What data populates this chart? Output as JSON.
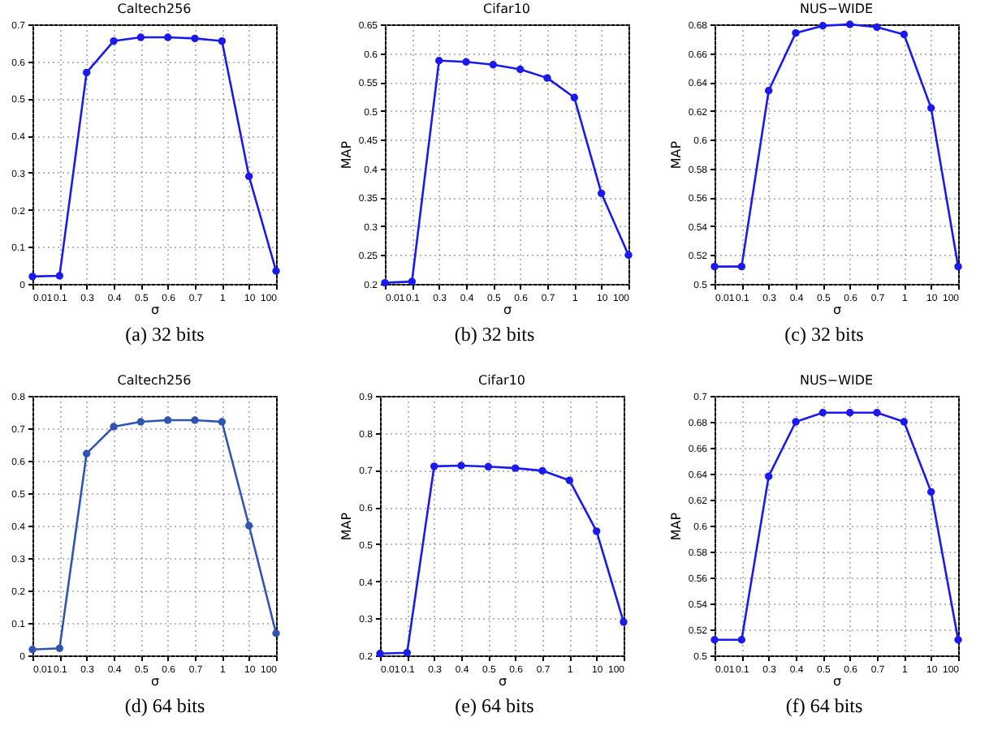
{
  "chart_data": [
    {
      "type": "line",
      "title": "Caltech256",
      "xlabel": "σ",
      "categories": [
        "0.01",
        "0.1",
        "0.3",
        "0.4",
        "0.5",
        "0.6",
        "0.7",
        "1",
        "10",
        "100"
      ],
      "series": [
        {
          "color": "#1a1aee",
          "values": [
            0.02,
            0.022,
            0.57,
            0.655,
            0.665,
            0.665,
            0.662,
            0.655,
            0.29,
            0.035
          ]
        }
      ],
      "ylim": [
        0,
        0.7
      ],
      "yticks": [
        0,
        0.1,
        0.2,
        0.3,
        0.4,
        0.5,
        0.6,
        0.7
      ],
      "grid": true,
      "marker": "circle",
      "annotations": [
        "(a) 32 bits"
      ]
    },
    {
      "type": "line",
      "title": "Cifar10",
      "xlabel": "σ",
      "ylabel": "MAP",
      "categories": [
        "0.01",
        "0.1",
        "0.3",
        "0.4",
        "0.5",
        "0.6",
        "0.7",
        "1",
        "10",
        "100"
      ],
      "series": [
        {
          "color": "#1a1aee",
          "values": [
            0.202,
            0.204,
            0.587,
            0.585,
            0.58,
            0.572,
            0.557,
            0.523,
            0.357,
            0.25
          ]
        }
      ],
      "ylim": [
        0.2,
        0.65
      ],
      "yticks": [
        0.2,
        0.25,
        0.3,
        0.35,
        0.4,
        0.45,
        0.5,
        0.55,
        0.6,
        0.65
      ],
      "grid": true,
      "marker": "circle",
      "annotations": [
        "(b) 32 bits"
      ]
    },
    {
      "type": "line",
      "title": "NUS−WIDE",
      "xlabel": "σ",
      "ylabel": "MAP",
      "categories": [
        "0.01",
        "0.1",
        "0.3",
        "0.4",
        "0.5",
        "0.6",
        "0.7",
        "1",
        "10",
        "100"
      ],
      "series": [
        {
          "color": "#1a1aee",
          "values": [
            0.512,
            0.512,
            0.634,
            0.674,
            0.679,
            0.68,
            0.678,
            0.673,
            0.622,
            0.512
          ]
        }
      ],
      "ylim": [
        0.5,
        0.68
      ],
      "yticks": [
        0.5,
        0.52,
        0.54,
        0.56,
        0.58,
        0.6,
        0.62,
        0.64,
        0.66,
        0.68
      ],
      "grid": true,
      "marker": "circle",
      "annotations": [
        "(c) 32 bits"
      ]
    },
    {
      "type": "line",
      "title": "Caltech256",
      "xlabel": "σ",
      "categories": [
        "0.01",
        "0.1",
        "0.3",
        "0.4",
        "0.5",
        "0.6",
        "0.7",
        "1",
        "10",
        "100"
      ],
      "series": [
        {
          "color": "#2f55b0",
          "values": [
            0.018,
            0.022,
            0.622,
            0.705,
            0.72,
            0.725,
            0.725,
            0.72,
            0.4,
            0.068
          ]
        }
      ],
      "ylim": [
        0,
        0.8
      ],
      "yticks": [
        0,
        0.1,
        0.2,
        0.3,
        0.4,
        0.5,
        0.6,
        0.7,
        0.8
      ],
      "grid": true,
      "marker": "circle",
      "annotations": [
        "(d) 64 bits"
      ]
    },
    {
      "type": "line",
      "title": "Cifar10",
      "xlabel": "σ",
      "ylabel": "MAP",
      "categories": [
        "0.01",
        "0.1",
        "0.3",
        "0.4",
        "0.5",
        "0.6",
        "0.7",
        "1",
        "10",
        "100"
      ],
      "series": [
        {
          "color": "#1a1aee",
          "values": [
            0.205,
            0.207,
            0.71,
            0.712,
            0.709,
            0.705,
            0.698,
            0.672,
            0.535,
            0.29
          ]
        }
      ],
      "ylim": [
        0.2,
        0.9
      ],
      "yticks": [
        0.2,
        0.3,
        0.4,
        0.5,
        0.6,
        0.7,
        0.8,
        0.9
      ],
      "grid": true,
      "marker": "circle",
      "annotations": [
        "(e) 64 bits"
      ]
    },
    {
      "type": "line",
      "title": "NUS−WIDE",
      "xlabel": "σ",
      "ylabel": "MAP",
      "categories": [
        "0.01",
        "0.1",
        "0.3",
        "0.4",
        "0.5",
        "0.6",
        "0.7",
        "1",
        "10",
        "100"
      ],
      "series": [
        {
          "color": "#1a1aee",
          "values": [
            0.512,
            0.512,
            0.638,
            0.68,
            0.687,
            0.687,
            0.687,
            0.68,
            0.626,
            0.512
          ]
        }
      ],
      "ylim": [
        0.5,
        0.7
      ],
      "yticks": [
        0.5,
        0.52,
        0.54,
        0.56,
        0.58,
        0.6,
        0.62,
        0.64,
        0.66,
        0.68,
        0.7
      ],
      "grid": true,
      "marker": "circle",
      "annotations": [
        "(f) 64 bits"
      ]
    }
  ]
}
